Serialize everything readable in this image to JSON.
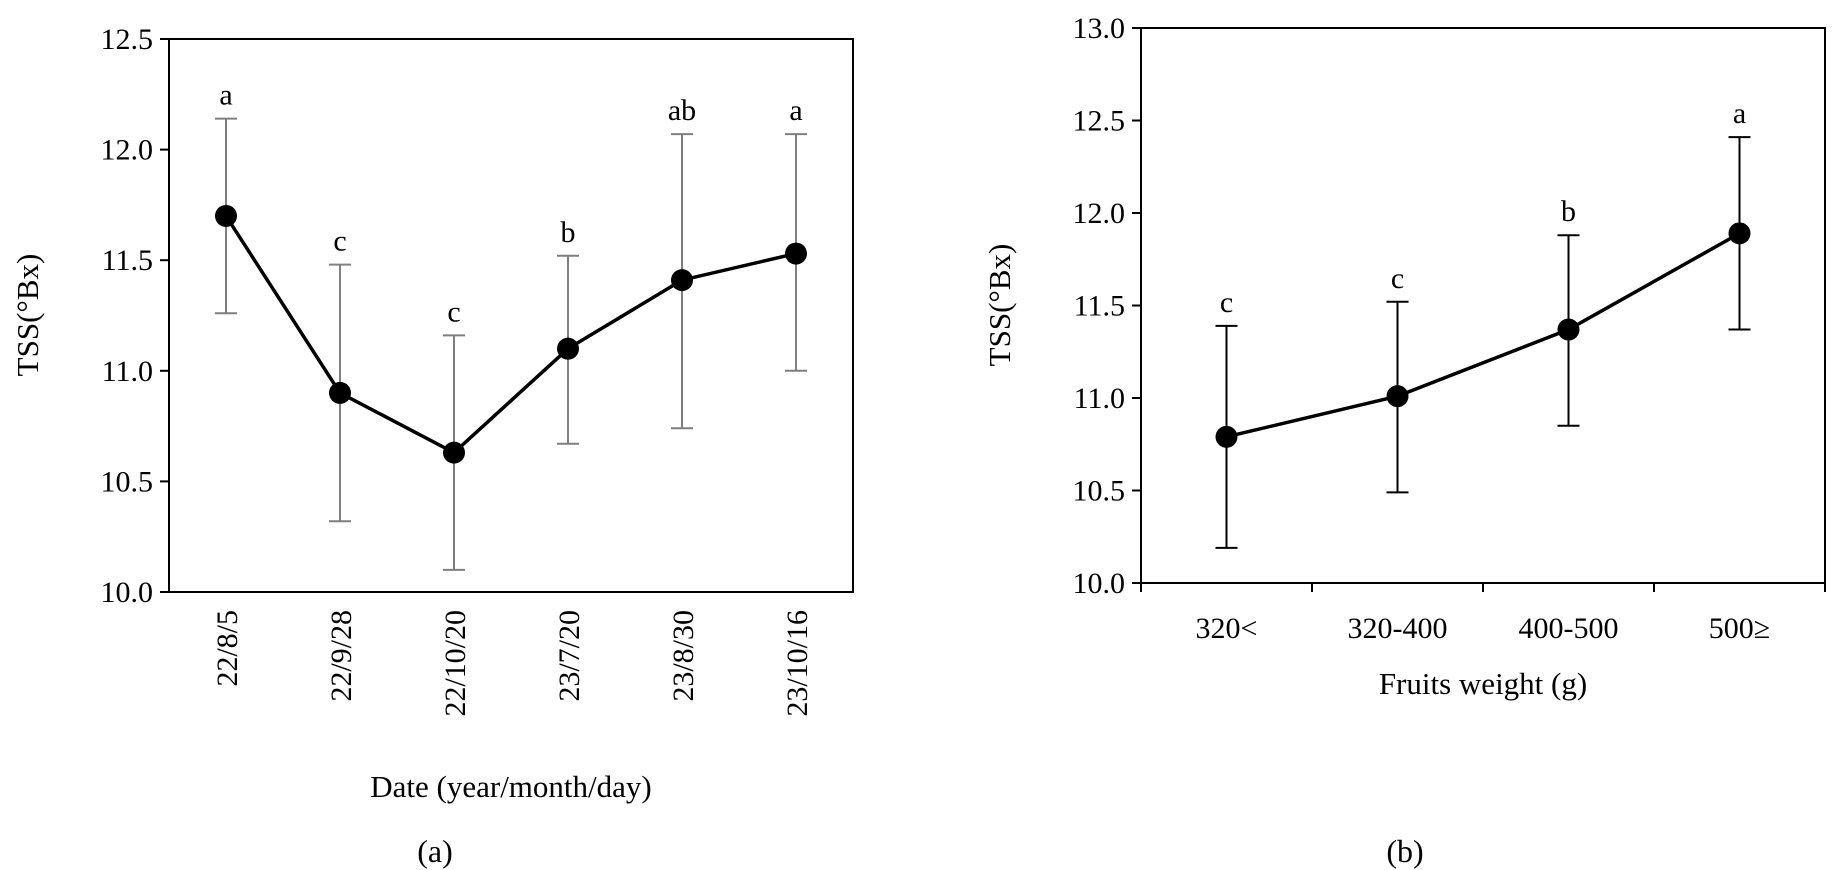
{
  "chart_data": [
    {
      "type": "line",
      "panel_label": "(a)",
      "xlabel": "Date (year/month/day)",
      "ylabel": "TSS(°Bx)",
      "ylim": [
        10.0,
        12.5
      ],
      "yticks": [
        "10.0",
        "10.5",
        "11.0",
        "11.5",
        "12.0",
        "12.5"
      ],
      "categories": [
        "22/8/5",
        "22/9/28",
        "22/10/20",
        "23/7/20",
        "23/8/30",
        "23/10/16"
      ],
      "values": [
        11.7,
        10.9,
        10.63,
        11.1,
        11.41,
        11.53
      ],
      "err_upper": [
        12.14,
        11.48,
        11.16,
        11.52,
        12.07,
        12.07
      ],
      "err_lower": [
        11.26,
        10.32,
        10.1,
        10.67,
        10.74,
        11.0
      ],
      "significance": [
        "a",
        "c",
        "c",
        "b",
        "ab",
        "a"
      ],
      "grid": false,
      "x_tick_rotation": "vertical",
      "colors": {
        "line": "#000000",
        "marker": "#000000",
        "error_bar": "#7f7f7f"
      }
    },
    {
      "type": "line",
      "panel_label": "(b)",
      "xlabel": "Fruits weight (g)",
      "ylabel": "TSS(°Bx)",
      "ylim": [
        10.0,
        13.0
      ],
      "yticks": [
        "10.0",
        "10.5",
        "11.0",
        "11.5",
        "12.0",
        "12.5",
        "13.0"
      ],
      "categories": [
        "320<",
        "320-400",
        "400-500",
        "500≥"
      ],
      "values": [
        10.79,
        11.01,
        11.37,
        11.89
      ],
      "err_upper": [
        11.39,
        11.52,
        11.88,
        12.41
      ],
      "err_lower": [
        10.19,
        10.49,
        10.85,
        11.37
      ],
      "significance": [
        "c",
        "c",
        "b",
        "a"
      ],
      "grid": false,
      "x_tick_rotation": "horizontal",
      "colors": {
        "line": "#000000",
        "marker": "#000000",
        "error_bar": "#000000"
      }
    }
  ]
}
